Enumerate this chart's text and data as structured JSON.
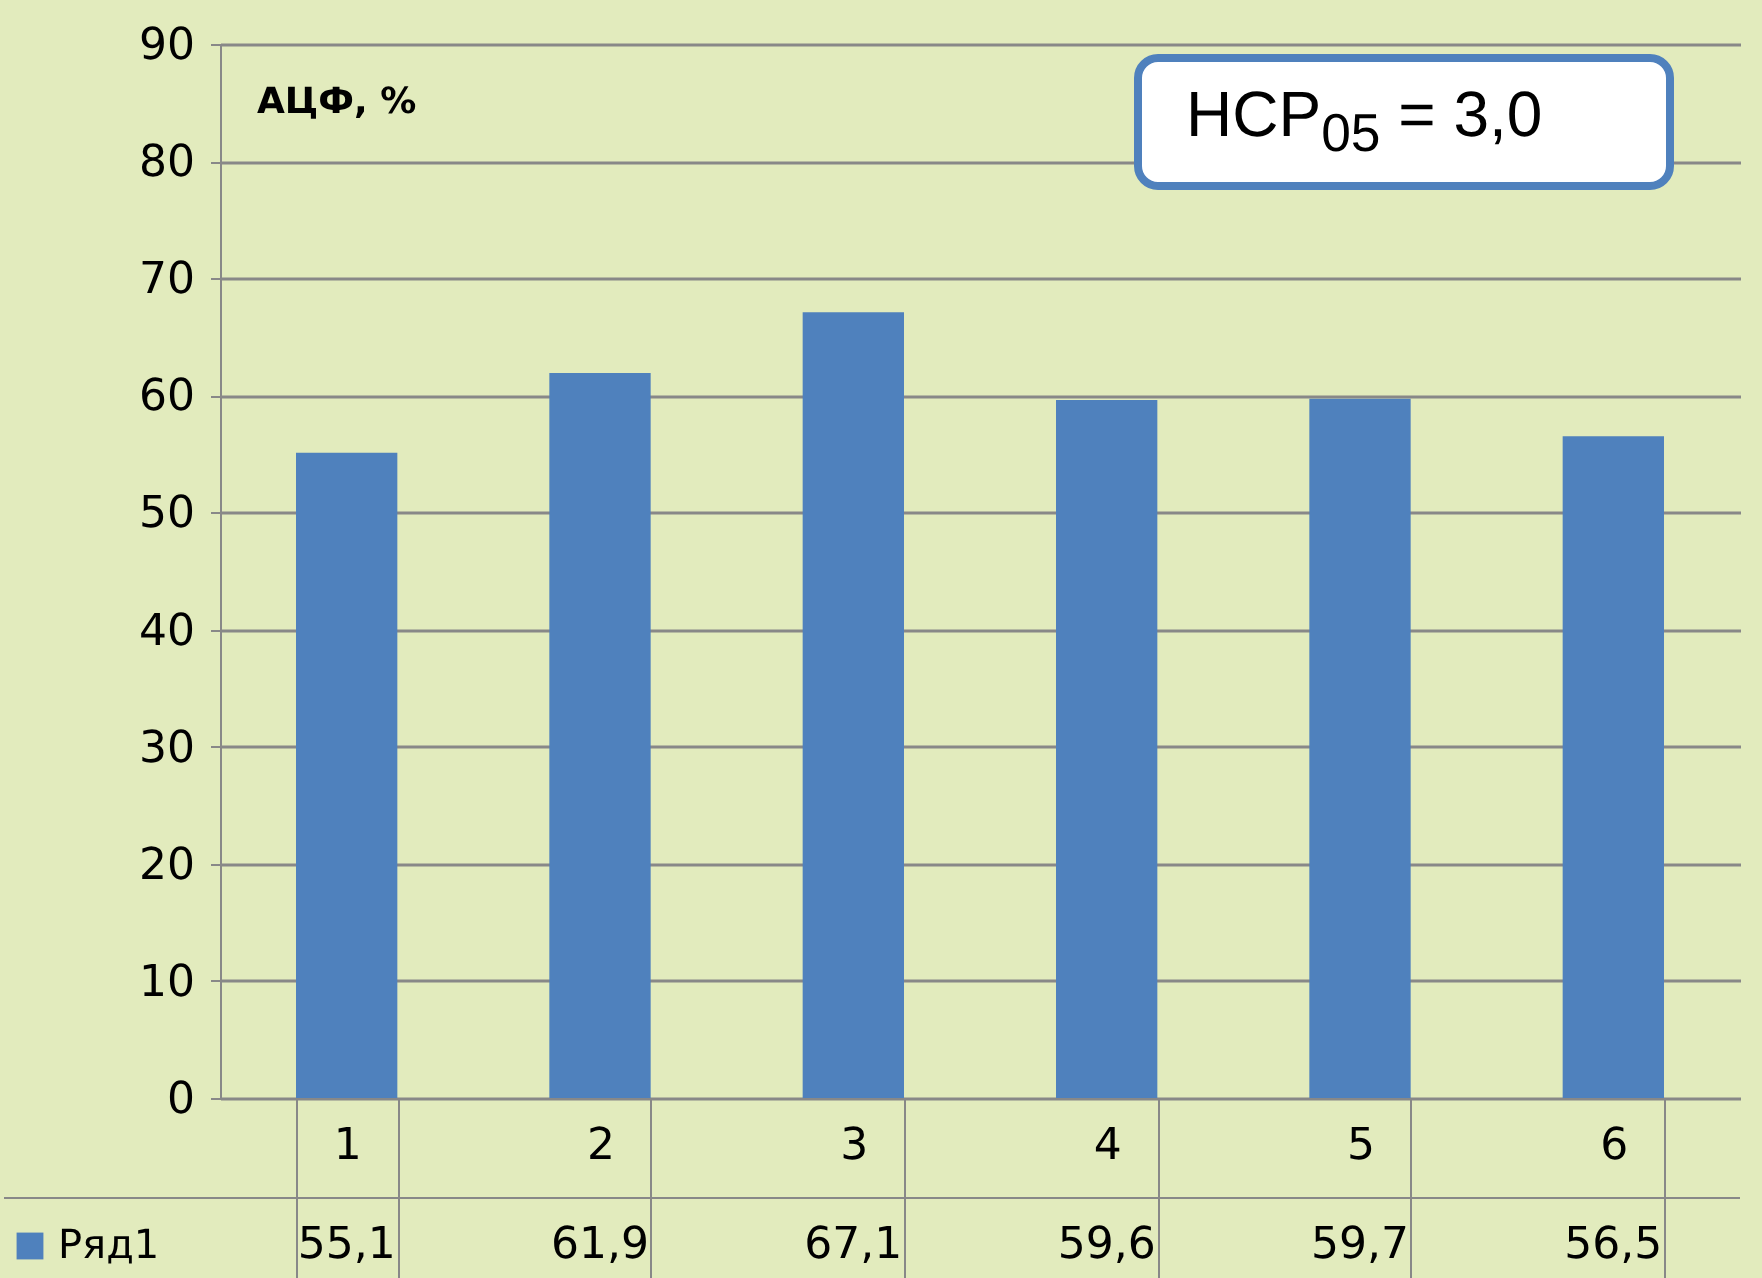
{
  "chart_data": {
    "type": "bar",
    "ylabel": "АЦФ, %",
    "categories": [
      "1",
      "2",
      "3",
      "4",
      "5",
      "6"
    ],
    "series": [
      {
        "name": "Ряд1",
        "color": "#4f81bd",
        "values": [
          55.1,
          61.9,
          67.1,
          59.6,
          59.7,
          56.5
        ],
        "value_labels": [
          "55,1",
          "61,9",
          "67,1",
          "59,6",
          "59,7",
          "56,5"
        ]
      }
    ],
    "ylim": [
      0,
      90
    ],
    "yticks": [
      0,
      10,
      20,
      30,
      40,
      50,
      60,
      70,
      80,
      90
    ],
    "grid": "y",
    "legend": "bottom left",
    "annotations": [
      "НСР$_{05}$ = 3,0"
    ]
  }
}
